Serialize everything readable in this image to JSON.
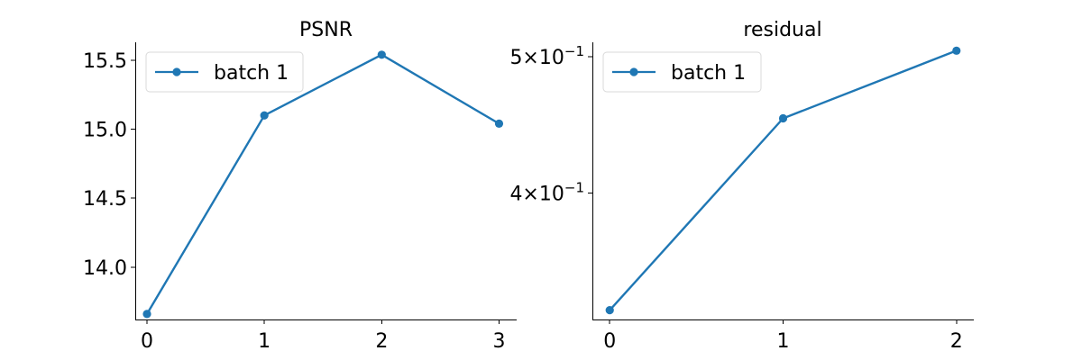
{
  "chart_data": [
    {
      "type": "line",
      "title": "PSNR",
      "xlabel": "",
      "ylabel": "",
      "x": [
        0,
        1,
        2,
        3
      ],
      "x_ticks": [
        "0",
        "1",
        "2",
        "3"
      ],
      "y_ticks": [
        14.0,
        14.5,
        15.0,
        15.5
      ],
      "y_tick_labels": [
        "14.0",
        "14.5",
        "15.0",
        "15.5"
      ],
      "xlim": [
        -0.1,
        3.15
      ],
      "ylim": [
        13.62,
        15.63
      ],
      "yscale": "linear",
      "grid": false,
      "legend": "upper-left",
      "series": [
        {
          "name": "batch 1",
          "color": "#1f77b4",
          "marker": "circle",
          "values": [
            13.66,
            15.1,
            15.54,
            15.04
          ]
        }
      ]
    },
    {
      "type": "line",
      "title": "residual",
      "xlabel": "",
      "ylabel": "",
      "x": [
        0,
        1,
        2
      ],
      "x_ticks": [
        "0",
        "1",
        "2"
      ],
      "y_ticks": [
        0.4,
        0.5
      ],
      "y_tick_labels": [
        {
          "mantissa": "4",
          "times": "×",
          "base": "10",
          "exp": "−1"
        },
        {
          "mantissa": "5",
          "times": "×",
          "base": "10",
          "exp": "−1"
        }
      ],
      "xlim": [
        -0.1,
        2.1
      ],
      "ylim": [
        0.325,
        0.512
      ],
      "yscale": "log",
      "grid": false,
      "legend": "upper-left",
      "series": [
        {
          "name": "batch 1",
          "color": "#1f77b4",
          "marker": "circle",
          "values": [
            0.33,
            0.452,
            0.505
          ]
        }
      ]
    }
  ]
}
